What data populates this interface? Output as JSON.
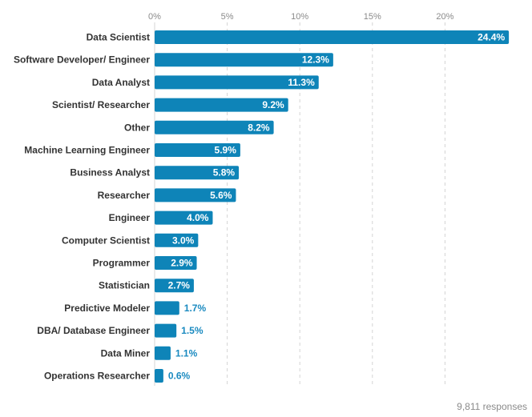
{
  "colors": {
    "bar": "#0e84b8",
    "outside_label": "#1a8ac0",
    "grid": "#d4d4d4"
  },
  "footer": {
    "responses": "9,811 responses"
  },
  "chart_data": {
    "type": "bar",
    "orientation": "horizontal",
    "xlim": [
      0,
      25
    ],
    "grid": true,
    "x_ticks": [
      0,
      5,
      10,
      15,
      20
    ],
    "x_tick_labels": [
      "0%",
      "5%",
      "10%",
      "15%",
      "20%"
    ],
    "categories": [
      "Data Scientist",
      "Software Developer/ Engineer",
      "Data Analyst",
      "Scientist/ Researcher",
      "Other",
      "Machine Learning Engineer",
      "Business Analyst",
      "Researcher",
      "Engineer",
      "Computer Scientist",
      "Programmer",
      "Statistician",
      "Predictive Modeler",
      "DBA/ Database Engineer",
      "Data Miner",
      "Operations Researcher"
    ],
    "values": [
      24.4,
      12.3,
      11.3,
      9.2,
      8.2,
      5.9,
      5.8,
      5.6,
      4.0,
      3.0,
      2.9,
      2.7,
      1.7,
      1.5,
      1.1,
      0.6
    ],
    "value_labels": [
      "24.4%",
      "12.3%",
      "11.3%",
      "9.2%",
      "8.2%",
      "5.9%",
      "5.8%",
      "5.6%",
      "4.0%",
      "3.0%",
      "2.9%",
      "2.7%",
      "1.7%",
      "1.5%",
      "1.1%",
      "0.6%"
    ]
  }
}
